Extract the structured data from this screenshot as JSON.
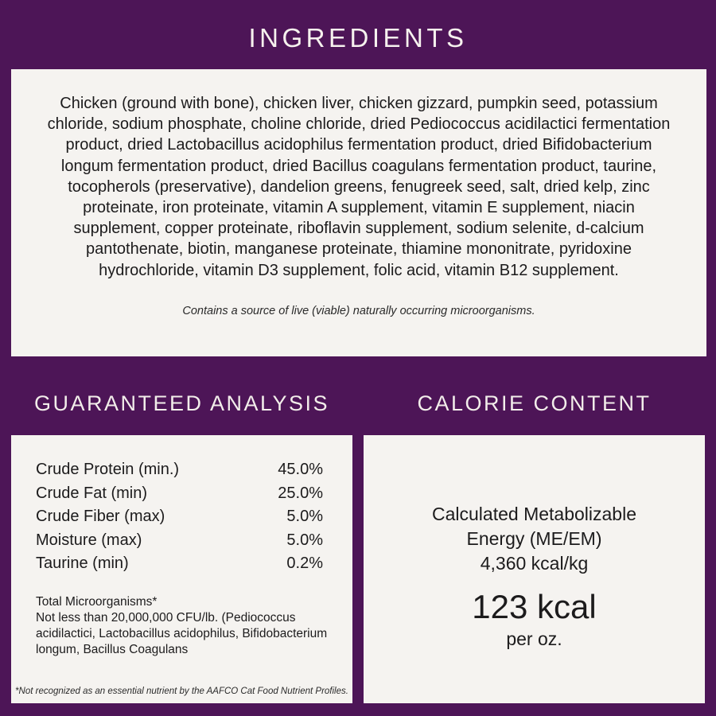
{
  "colors": {
    "background_purple": "#4d1557",
    "panel_offwhite": "#f5f3f0",
    "text_dark": "#1c1b1c",
    "header_text": "#f6f1ee"
  },
  "header": {
    "title": "INGREDIENTS"
  },
  "ingredients": {
    "text": "Chicken (ground with bone), chicken liver, chicken gizzard, pumpkin seed, potassium chloride, sodium phosphate, choline chloride, dried Pediococcus acidilactici fermentation product, dried Lactobacillus acidophilus fermentation product, dried Bifidobacterium longum fermentation product, dried Bacillus coagulans fermentation product, taurine, tocopherols (preservative), dandelion greens, fenugreek seed, salt, dried kelp, zinc proteinate, iron proteinate, vitamin A supplement, vitamin E supplement, niacin supplement, copper proteinate, riboflavin supplement, sodium selenite, d-calcium pantothenate, biotin, manganese proteinate, thiamine mononitrate, pyridoxine hydrochloride, vitamin D3 supplement, folic acid, vitamin B12 supplement.",
    "note": "Contains a source of live (viable) naturally occurring microorganisms."
  },
  "guaranteed_analysis": {
    "title": "GUARANTEED ANALYSIS",
    "rows": [
      {
        "label": "Crude Protein (min.)",
        "value": "45.0%"
      },
      {
        "label": "Crude Fat (min)",
        "value": "25.0%"
      },
      {
        "label": "Crude Fiber (max)",
        "value": "5.0%"
      },
      {
        "label": "Moisture (max)",
        "value": "5.0%"
      },
      {
        "label": "Taurine (min)",
        "value": "0.2%"
      }
    ],
    "microorganisms": "Total Microorganisms*\nNot less than 20,000,000 CFU/lb. (Pediococcus acidilactici, Lactobacillus acidophilus, Bifidobacterium longum, Bacillus Coagulans",
    "footnote": "*Not recognized as an essential nutrient by the AAFCO Cat Food Nutrient Profiles."
  },
  "calorie_content": {
    "title": "CALORIE CONTENT",
    "energy_label": "Calculated Metabolizable\nEnergy (ME/EM)\n4,360 kcal/kg",
    "kcal_value": "123 kcal",
    "kcal_unit": "per oz."
  }
}
